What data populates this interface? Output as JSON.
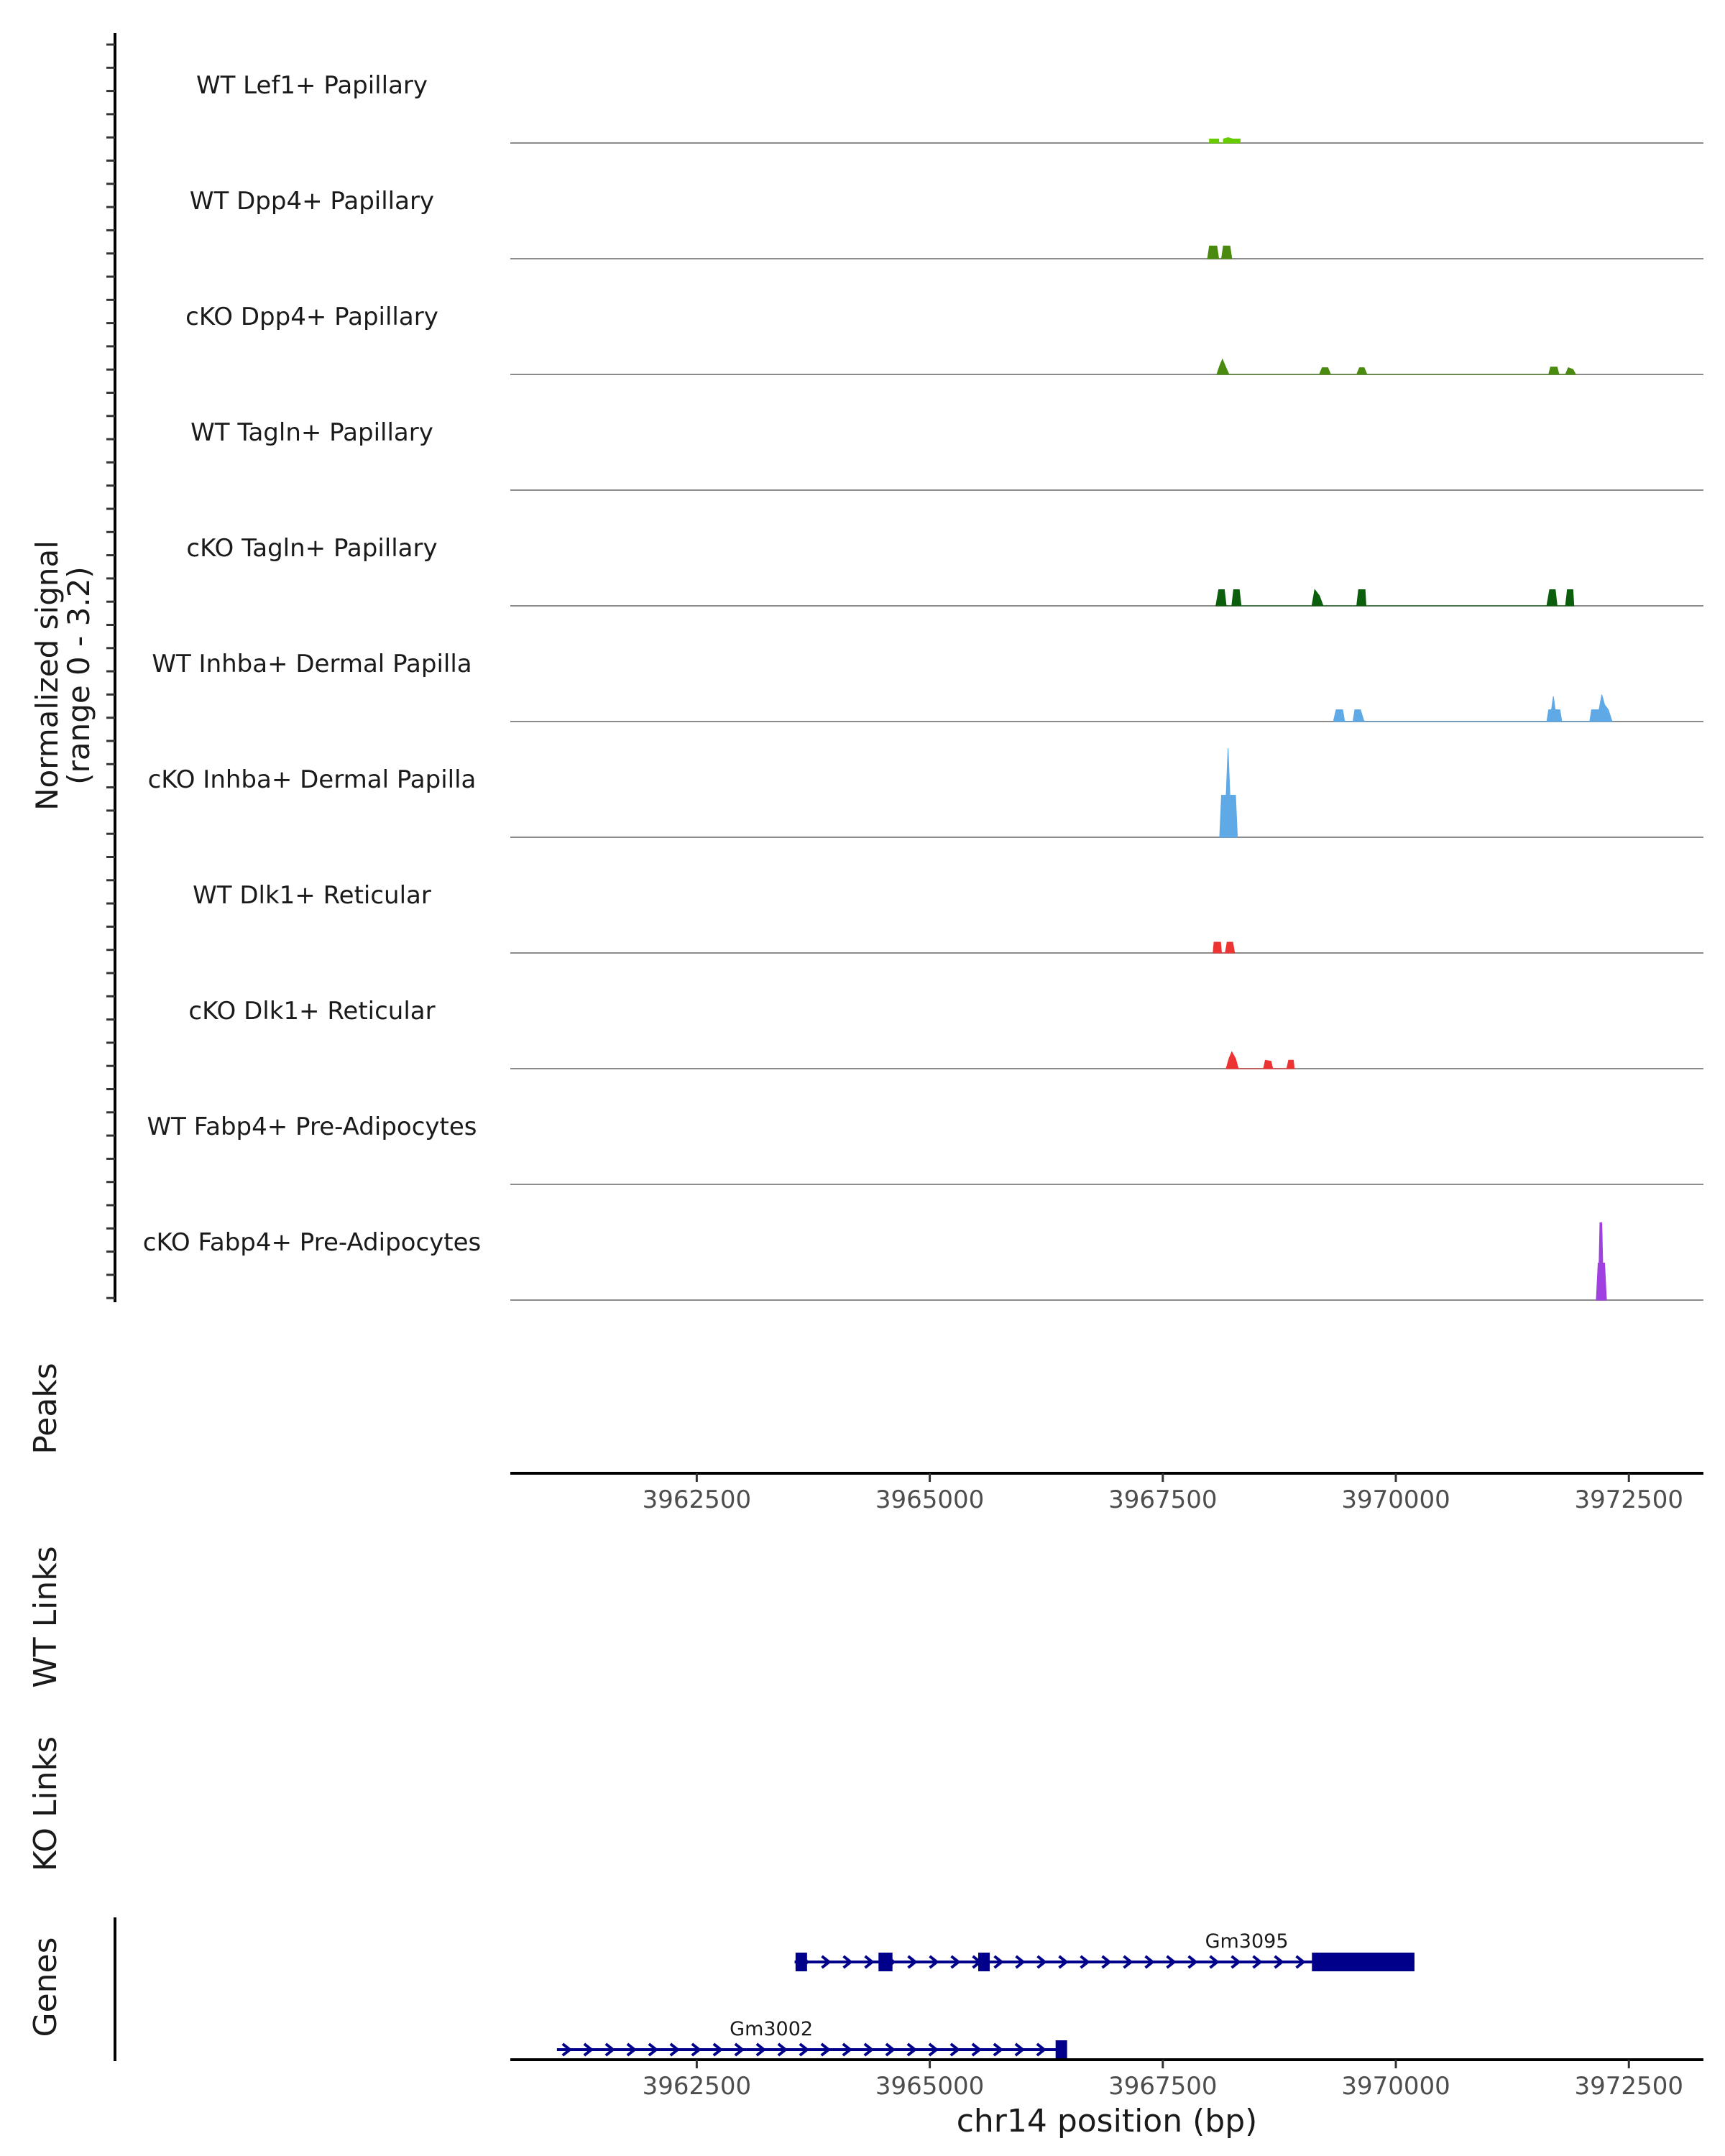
{
  "chart_data": {
    "type": "coverage-track",
    "chromosome": "chr14",
    "xlabel": "chr14 position (bp)",
    "xlim": [
      3960500,
      3973300
    ],
    "xticks": [
      3962500,
      3965000,
      3967500,
      3970000,
      3972500
    ],
    "xtick_labels": [
      "3962500",
      "3965000",
      "3967500",
      "3970000",
      "3972500"
    ],
    "ylabel_line1": "Normalized signal",
    "ylabel_line2": "(range 0 - 3.2)",
    "ylim": [
      0,
      3.2
    ],
    "series": [
      {
        "name": "WT Lef1+ Papillary",
        "color": "#66cc00",
        "points": [
          [
            3968000,
            0
          ],
          [
            3968000,
            0.12
          ],
          [
            3968100,
            0.12
          ],
          [
            3968100,
            0
          ],
          [
            3968150,
            0
          ],
          [
            3968150,
            0.12
          ],
          [
            3968200,
            0.16
          ],
          [
            3968250,
            0.12
          ],
          [
            3968330,
            0.12
          ],
          [
            3968330,
            0
          ]
        ]
      },
      {
        "name": "WT Dpp4+ Papillary",
        "color": "#4a8a0f",
        "points": [
          [
            3967980,
            0
          ],
          [
            3968000,
            0.38
          ],
          [
            3968080,
            0.38
          ],
          [
            3968100,
            0
          ],
          [
            3968130,
            0
          ],
          [
            3968150,
            0.38
          ],
          [
            3968220,
            0.38
          ],
          [
            3968240,
            0
          ]
        ]
      },
      {
        "name": "cKO Dpp4+ Papillary",
        "color": "#4a8a0f",
        "points": [
          [
            3968080,
            0
          ],
          [
            3968110,
            0.25
          ],
          [
            3968140,
            0.45
          ],
          [
            3968170,
            0.25
          ],
          [
            3968210,
            0
          ],
          [
            3968200,
            0
          ],
          [
            3969180,
            0
          ],
          [
            3969210,
            0.2
          ],
          [
            3969270,
            0.2
          ],
          [
            3969300,
            0
          ],
          [
            3969580,
            0
          ],
          [
            3969610,
            0.2
          ],
          [
            3969660,
            0.2
          ],
          [
            3969690,
            0
          ],
          [
            3971640,
            0
          ],
          [
            3971660,
            0.22
          ],
          [
            3971730,
            0.22
          ],
          [
            3971750,
            0
          ],
          [
            3971820,
            0
          ],
          [
            3971850,
            0.2
          ],
          [
            3971900,
            0.15
          ],
          [
            3971930,
            0
          ]
        ]
      },
      {
        "name": "WT Tagln+ Papillary",
        "color": "#2e7d1a",
        "points": []
      },
      {
        "name": "cKO Tagln+ Papillary",
        "color": "#0b5e0b",
        "points": [
          [
            3968070,
            0
          ],
          [
            3968100,
            0.48
          ],
          [
            3968160,
            0.48
          ],
          [
            3968180,
            0
          ],
          [
            3968240,
            0
          ],
          [
            3968260,
            0.48
          ],
          [
            3968320,
            0.48
          ],
          [
            3968340,
            0
          ],
          [
            3969100,
            0
          ],
          [
            3969130,
            0.48
          ],
          [
            3969180,
            0.3
          ],
          [
            3969220,
            0
          ],
          [
            3969580,
            0
          ],
          [
            3969600,
            0.48
          ],
          [
            3969670,
            0.48
          ],
          [
            3969680,
            0
          ],
          [
            3971620,
            0
          ],
          [
            3971650,
            0.48
          ],
          [
            3971710,
            0.48
          ],
          [
            3971730,
            0
          ],
          [
            3971820,
            0
          ],
          [
            3971840,
            0.48
          ],
          [
            3971900,
            0.48
          ],
          [
            3971910,
            0
          ]
        ]
      },
      {
        "name": "WT Inhba+ Dermal Papilla",
        "color": "#5fa9e6",
        "points": [
          [
            3969330,
            0
          ],
          [
            3969360,
            0.35
          ],
          [
            3969430,
            0.35
          ],
          [
            3969450,
            0
          ],
          [
            3969540,
            0
          ],
          [
            3969560,
            0.35
          ],
          [
            3969620,
            0.35
          ],
          [
            3969660,
            0
          ],
          [
            3971620,
            0
          ],
          [
            3971640,
            0.35
          ],
          [
            3971670,
            0.35
          ],
          [
            3971690,
            0.75
          ],
          [
            3971710,
            0.35
          ],
          [
            3971760,
            0.35
          ],
          [
            3971780,
            0
          ],
          [
            3972080,
            0
          ],
          [
            3972100,
            0.35
          ],
          [
            3972180,
            0.35
          ],
          [
            3972210,
            0.8
          ],
          [
            3972240,
            0.5
          ],
          [
            3972280,
            0.35
          ],
          [
            3972320,
            0
          ]
        ]
      },
      {
        "name": "cKO Inhba+ Dermal Papilla",
        "color": "#5fa9e6",
        "points": [
          [
            3968110,
            0
          ],
          [
            3968130,
            1.25
          ],
          [
            3968180,
            1.25
          ],
          [
            3968200,
            2.65
          ],
          [
            3968220,
            1.25
          ],
          [
            3968280,
            1.25
          ],
          [
            3968300,
            0
          ]
        ]
      },
      {
        "name": "WT Dlk1+ Reticular",
        "color": "#ee3333",
        "points": [
          [
            3968040,
            0
          ],
          [
            3968050,
            0.32
          ],
          [
            3968120,
            0.32
          ],
          [
            3968130,
            0
          ],
          [
            3968170,
            0
          ],
          [
            3968190,
            0.32
          ],
          [
            3968250,
            0.32
          ],
          [
            3968270,
            0
          ]
        ]
      },
      {
        "name": "cKO Dlk1+ Reticular",
        "color": "#ee3333",
        "points": [
          [
            3968180,
            0
          ],
          [
            3968210,
            0.3
          ],
          [
            3968240,
            0.5
          ],
          [
            3968280,
            0.3
          ],
          [
            3968310,
            0
          ],
          [
            3968580,
            0
          ],
          [
            3968600,
            0.25
          ],
          [
            3968660,
            0.22
          ],
          [
            3968680,
            0
          ],
          [
            3968830,
            0
          ],
          [
            3968850,
            0.25
          ],
          [
            3968900,
            0.25
          ],
          [
            3968910,
            0
          ]
        ]
      },
      {
        "name": "WT Fabp4+ Pre-Adipocytes",
        "color": "#a040e0",
        "points": []
      },
      {
        "name": "cKO Fabp4+ Pre-Adipocytes",
        "color": "#a040e0",
        "points": [
          [
            3972150,
            0
          ],
          [
            3972170,
            1.1
          ],
          [
            3972180,
            1.1
          ],
          [
            3972190,
            2.3
          ],
          [
            3972210,
            2.3
          ],
          [
            3972220,
            1.1
          ],
          [
            3972240,
            1.1
          ],
          [
            3972260,
            0
          ]
        ]
      }
    ],
    "peaks_label": "Peaks",
    "wt_links_label": "WT Links",
    "ko_links_label": "KO Links",
    "genes_label": "Genes",
    "genes": [
      {
        "name": "Gm3095",
        "start": 3963550,
        "end": 3970200,
        "strand": "+",
        "exons": [
          [
            3963560,
            3963680
          ],
          [
            3964450,
            3964600
          ],
          [
            3965520,
            3965620
          ],
          [
            3969100,
            3970200
          ]
        ]
      },
      {
        "name": "Gm3002",
        "start": 3961000,
        "end": 3966450,
        "strand": "+",
        "exons": [
          [
            3966350,
            3966450
          ]
        ]
      }
    ],
    "colors": {
      "gene": "#00008b",
      "baseline": "#8c8c8c",
      "axis": "#000000"
    }
  }
}
